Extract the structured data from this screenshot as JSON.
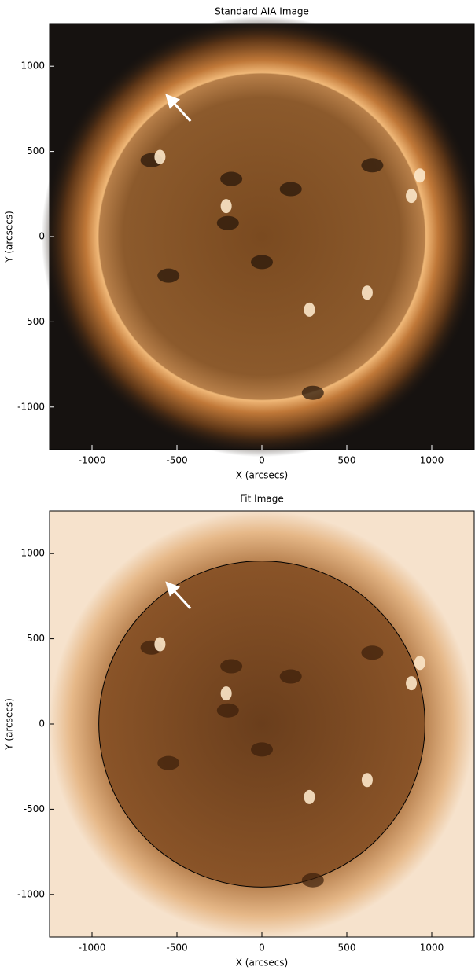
{
  "chart_data": [
    {
      "type": "image",
      "title": "Standard AIA Image",
      "xlabel": "X (arcsecs)",
      "ylabel": "Y (arcsecs)",
      "xlim": [
        -1250,
        1250
      ],
      "ylim": [
        -1250,
        1250
      ],
      "xticks": [
        -1000,
        -500,
        0,
        500,
        1000
      ],
      "yticks": [
        -1000,
        -500,
        0,
        500,
        1000
      ]
    },
    {
      "type": "image",
      "title": "Fit Image",
      "xlabel": "X (arcsecs)",
      "ylabel": "Y (arcsecs)",
      "xlim": [
        -1250,
        1250
      ],
      "ylim": [
        -1250,
        1250
      ],
      "xticks": [
        -1000,
        -500,
        0,
        500,
        1000
      ],
      "yticks": [
        -1000,
        -500,
        0,
        500,
        1000
      ]
    }
  ]
}
